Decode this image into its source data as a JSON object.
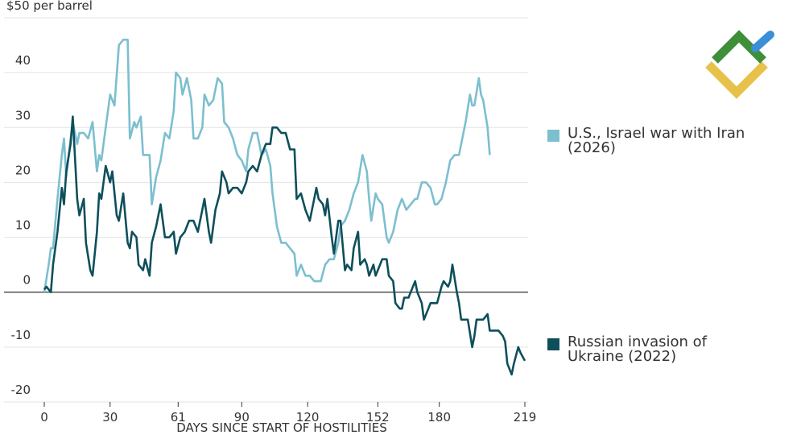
{
  "chart_data": {
    "type": "line",
    "xlabel": "DAYS SINCE START OF HOSTILITIES",
    "xlim": [
      0,
      219
    ],
    "xticks": [
      0,
      30,
      61,
      90,
      120,
      152,
      180,
      219
    ],
    "ylim": [
      -20,
      50
    ],
    "yticks": [
      -20,
      -10,
      0,
      10,
      20,
      30,
      40,
      {
        "value": 50,
        "label": "$50 per barrel"
      }
    ],
    "grid": true,
    "zero_line": true,
    "series": [
      {
        "name": "U.S., Israel war with Iran (2026)",
        "color": "#7cbfcf",
        "x": [
          0,
          2,
          3,
          4,
          6,
          8,
          9,
          10,
          12,
          13,
          15,
          16,
          18,
          20,
          22,
          24,
          25,
          26,
          28,
          30,
          32,
          34,
          36,
          38,
          39,
          41,
          42,
          44,
          45,
          48,
          49,
          51,
          53,
          55,
          57,
          59,
          60,
          62,
          63,
          65,
          67,
          68,
          70,
          72,
          73,
          75,
          77,
          79,
          81,
          82,
          84,
          86,
          88,
          90,
          92,
          93,
          95,
          97,
          99,
          101,
          103,
          104,
          106,
          108,
          110,
          112,
          114,
          115,
          117,
          119,
          121,
          123,
          125,
          126,
          128,
          130,
          132,
          134,
          135,
          137,
          139,
          141,
          143,
          145,
          147,
          148,
          149,
          151,
          152,
          154,
          156,
          157,
          159,
          161,
          163,
          165,
          167,
          169,
          170,
          172,
          174,
          176,
          178,
          179,
          181,
          183,
          185,
          187,
          189,
          190,
          192,
          194,
          195,
          196,
          198,
          199,
          200,
          202,
          203
        ],
        "values": [
          0,
          5,
          8,
          8,
          17,
          25,
          28,
          21,
          28,
          31,
          27,
          29,
          29,
          28,
          31,
          22,
          25,
          24,
          30,
          36,
          34,
          45,
          46,
          46,
          28,
          31,
          30,
          32,
          25,
          25,
          16,
          21,
          24,
          29,
          28,
          33,
          40,
          39,
          36,
          39,
          35,
          28,
          28,
          30,
          36,
          34,
          35,
          39,
          38,
          31,
          30,
          28,
          25,
          24,
          22,
          26,
          29,
          29,
          25,
          26,
          23,
          18,
          12,
          9,
          9,
          8,
          7,
          3,
          5,
          3,
          3,
          2,
          2,
          2,
          5,
          6,
          6,
          9,
          12,
          13,
          15,
          18,
          20,
          25,
          22,
          17,
          13,
          18,
          17,
          16,
          10,
          9,
          11,
          15,
          17,
          15,
          16,
          17,
          17,
          20,
          20,
          19,
          16,
          16,
          17,
          20,
          24,
          25,
          25,
          27,
          31,
          36,
          34,
          34,
          39,
          36,
          35,
          30,
          25
        ]
      },
      {
        "name": "Russian invasion of Ukraine (2022)",
        "color": "#0e4f5b",
        "x": [
          0,
          1,
          3,
          4,
          6,
          8,
          9,
          10,
          12,
          13,
          15,
          16,
          18,
          19,
          21,
          22,
          24,
          25,
          26,
          28,
          30,
          31,
          33,
          34,
          36,
          38,
          39,
          40,
          42,
          43,
          45,
          46,
          48,
          49,
          51,
          53,
          55,
          57,
          59,
          60,
          62,
          64,
          66,
          68,
          70,
          72,
          73,
          75,
          76,
          78,
          80,
          81,
          83,
          84,
          86,
          88,
          90,
          92,
          93,
          95,
          97,
          99,
          101,
          103,
          104,
          106,
          108,
          110,
          112,
          114,
          115,
          117,
          119,
          121,
          123,
          124,
          125,
          127,
          128,
          129,
          131,
          132,
          134,
          135,
          137,
          138,
          140,
          141,
          143,
          144,
          146,
          147,
          148,
          150,
          151,
          153,
          154,
          156,
          157,
          159,
          160,
          162,
          163,
          164,
          166,
          167,
          169,
          170,
          172,
          173,
          175,
          176,
          178,
          179,
          181,
          182,
          184,
          185,
          186,
          188,
          189,
          190,
          192,
          193,
          195,
          196,
          197,
          199,
          200,
          202,
          203,
          205,
          207,
          209,
          210,
          211,
          213,
          214,
          216,
          217,
          219
        ],
        "values": [
          0.5,
          1,
          0,
          5,
          11,
          19,
          16,
          22,
          27,
          32,
          17,
          14,
          17,
          9,
          4,
          3,
          11,
          18,
          17,
          23,
          20,
          22,
          14,
          13,
          18,
          9,
          8,
          11,
          10,
          5,
          4,
          6,
          3,
          9,
          12,
          16,
          10,
          10,
          11,
          7,
          10,
          11,
          13,
          13,
          11,
          15,
          17,
          11,
          9,
          15,
          18,
          22,
          20,
          18,
          19,
          19,
          18,
          20,
          22,
          23,
          22,
          25,
          27,
          27,
          30,
          30,
          29,
          29,
          26,
          26,
          17,
          18,
          15,
          13,
          17,
          19,
          17,
          16,
          14,
          17,
          10,
          7,
          13,
          13,
          4,
          5,
          4,
          8,
          11,
          5,
          6,
          5,
          3,
          5,
          3,
          5,
          6,
          6,
          3,
          2,
          -2,
          -3,
          -3,
          -1,
          -1,
          0,
          2,
          0,
          -2,
          -5,
          -3,
          -2,
          -2,
          -2,
          1,
          2,
          1,
          2,
          5,
          0,
          -2,
          -5,
          -5,
          -5,
          -10,
          -8,
          -5,
          -5,
          -5,
          -4,
          -7,
          -7,
          -7,
          -8,
          -9,
          -13,
          -15,
          -13,
          -10,
          -11,
          -12.5
        ]
      }
    ]
  }
}
